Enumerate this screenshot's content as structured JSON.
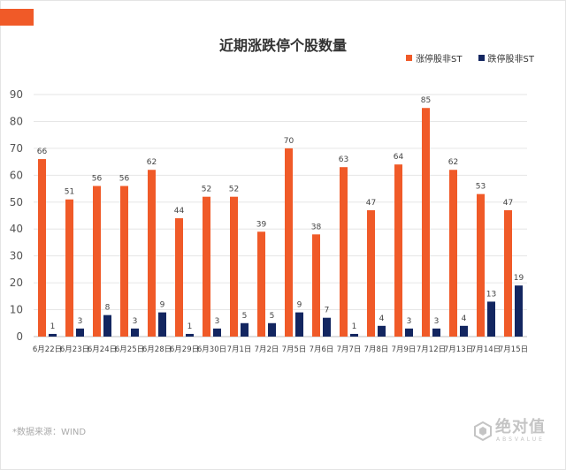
{
  "chart_data": {
    "type": "bar",
    "title": "近期涨跌停个股数量",
    "xlabel": "",
    "ylabel": "",
    "categories": [
      "6月22日",
      "6月23日",
      "6月24日",
      "6月25日",
      "6月28日",
      "6月29日",
      "6月30日",
      "7月1日",
      "7月2日",
      "7月5日",
      "7月6日",
      "7月7日",
      "7月8日",
      "7月9日",
      "7月12日",
      "7月13日",
      "7月14日",
      "7月15日"
    ],
    "series": [
      {
        "name": "涨停股非ST",
        "color": "#f05a28",
        "values": [
          66,
          51,
          56,
          56,
          62,
          44,
          52,
          52,
          39,
          70,
          38,
          63,
          47,
          64,
          85,
          62,
          53,
          47
        ]
      },
      {
        "name": "跌停股非ST",
        "color": "#132660",
        "values": [
          1,
          3,
          8,
          3,
          9,
          1,
          3,
          5,
          5,
          9,
          7,
          1,
          4,
          3,
          3,
          4,
          13,
          19
        ]
      }
    ],
    "ylim": [
      0,
      90
    ],
    "yticks": [
      0,
      10,
      20,
      30,
      40,
      50,
      60,
      70,
      80,
      90
    ],
    "grid": true,
    "legend_position": "top-right",
    "data_labels": true
  },
  "footer": {
    "source": "*数据来源：WIND",
    "logo_text": "绝对值",
    "logo_sub": "ABSVALUE"
  }
}
